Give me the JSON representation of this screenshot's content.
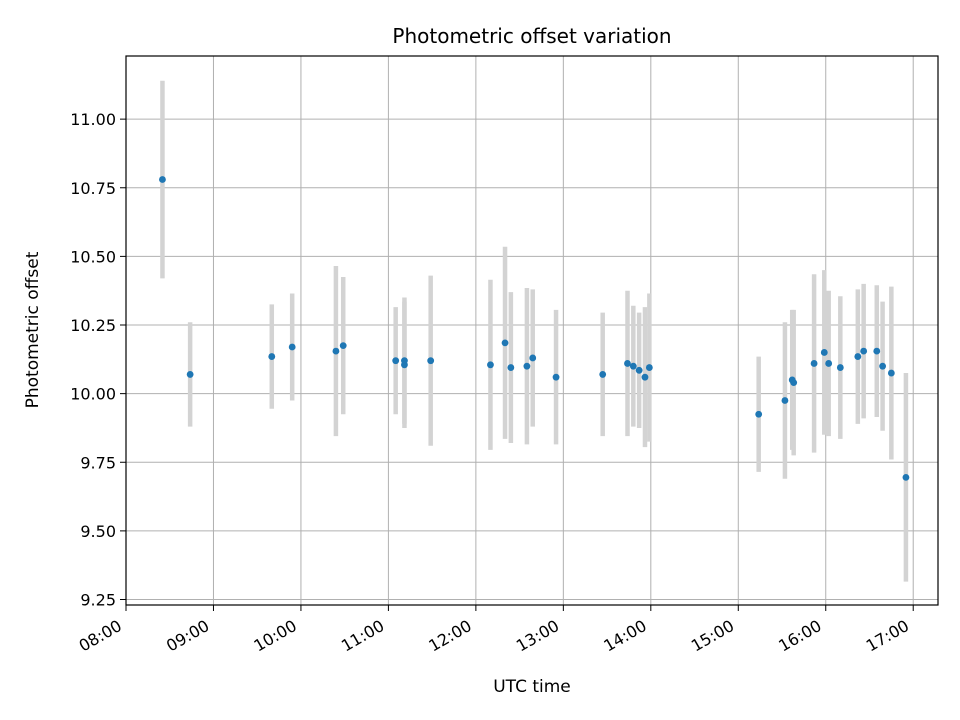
{
  "chart_data": {
    "type": "scatter",
    "title": "Photometric offset variation",
    "xlabel": "UTC time",
    "ylabel": "Photometric offset",
    "xlim": [
      "08:00",
      "17:17"
    ],
    "ylim": [
      9.23,
      11.23
    ],
    "grid": true,
    "x_ticks": [
      "08:00",
      "09:00",
      "10:00",
      "11:00",
      "12:00",
      "13:00",
      "14:00",
      "15:00",
      "16:00",
      "17:00"
    ],
    "y_ticks": [
      "9.25",
      "9.50",
      "9.75",
      "10.00",
      "10.25",
      "10.50",
      "10.75",
      "11.00"
    ],
    "colors": {
      "point": "#1f77b4",
      "error_bar": "#d3d3d3",
      "grid": "#b0b0b0"
    },
    "series": [
      {
        "points": [
          {
            "x": "08:25",
            "y": 10.78,
            "err": 0.36
          },
          {
            "x": "08:44",
            "y": 10.07,
            "err": 0.19
          },
          {
            "x": "09:40",
            "y": 10.135,
            "err": 0.19
          },
          {
            "x": "09:54",
            "y": 10.17,
            "err": 0.195
          },
          {
            "x": "10:24",
            "y": 10.155,
            "err": 0.31
          },
          {
            "x": "10:29",
            "y": 10.175,
            "err": 0.25
          },
          {
            "x": "11:05",
            "y": 10.12,
            "err": 0.195
          },
          {
            "x": "11:11",
            "y": 10.105,
            "err": 0.23
          },
          {
            "x": "11:11",
            "y": 10.12,
            "err": 0.23
          },
          {
            "x": "11:29",
            "y": 10.12,
            "err": 0.31
          },
          {
            "x": "12:10",
            "y": 10.105,
            "err": 0.31
          },
          {
            "x": "12:20",
            "y": 10.185,
            "err": 0.35
          },
          {
            "x": "12:24",
            "y": 10.095,
            "err": 0.275
          },
          {
            "x": "12:35",
            "y": 10.1,
            "err": 0.285
          },
          {
            "x": "12:39",
            "y": 10.13,
            "err": 0.25
          },
          {
            "x": "12:55",
            "y": 10.06,
            "err": 0.245
          },
          {
            "x": "13:27",
            "y": 10.07,
            "err": 0.225
          },
          {
            "x": "13:44",
            "y": 10.11,
            "err": 0.265
          },
          {
            "x": "13:48",
            "y": 10.1,
            "err": 0.22
          },
          {
            "x": "13:52",
            "y": 10.085,
            "err": 0.21
          },
          {
            "x": "13:56",
            "y": 10.06,
            "err": 0.255
          },
          {
            "x": "13:59",
            "y": 10.095,
            "err": 0.27
          },
          {
            "x": "15:14",
            "y": 9.925,
            "err": 0.21
          },
          {
            "x": "15:32",
            "y": 9.975,
            "err": 0.285
          },
          {
            "x": "15:37",
            "y": 10.05,
            "err": 0.255
          },
          {
            "x": "15:38",
            "y": 10.04,
            "err": 0.265
          },
          {
            "x": "15:52",
            "y": 10.11,
            "err": 0.325
          },
          {
            "x": "15:59",
            "y": 10.15,
            "err": 0.3
          },
          {
            "x": "16:02",
            "y": 10.11,
            "err": 0.265
          },
          {
            "x": "16:10",
            "y": 10.095,
            "err": 0.26
          },
          {
            "x": "16:22",
            "y": 10.135,
            "err": 0.245
          },
          {
            "x": "16:26",
            "y": 10.155,
            "err": 0.245
          },
          {
            "x": "16:35",
            "y": 10.155,
            "err": 0.24
          },
          {
            "x": "16:39",
            "y": 10.1,
            "err": 0.235
          },
          {
            "x": "16:45",
            "y": 10.075,
            "err": 0.315
          },
          {
            "x": "16:55",
            "y": 9.695,
            "err": 0.38
          }
        ]
      }
    ]
  }
}
